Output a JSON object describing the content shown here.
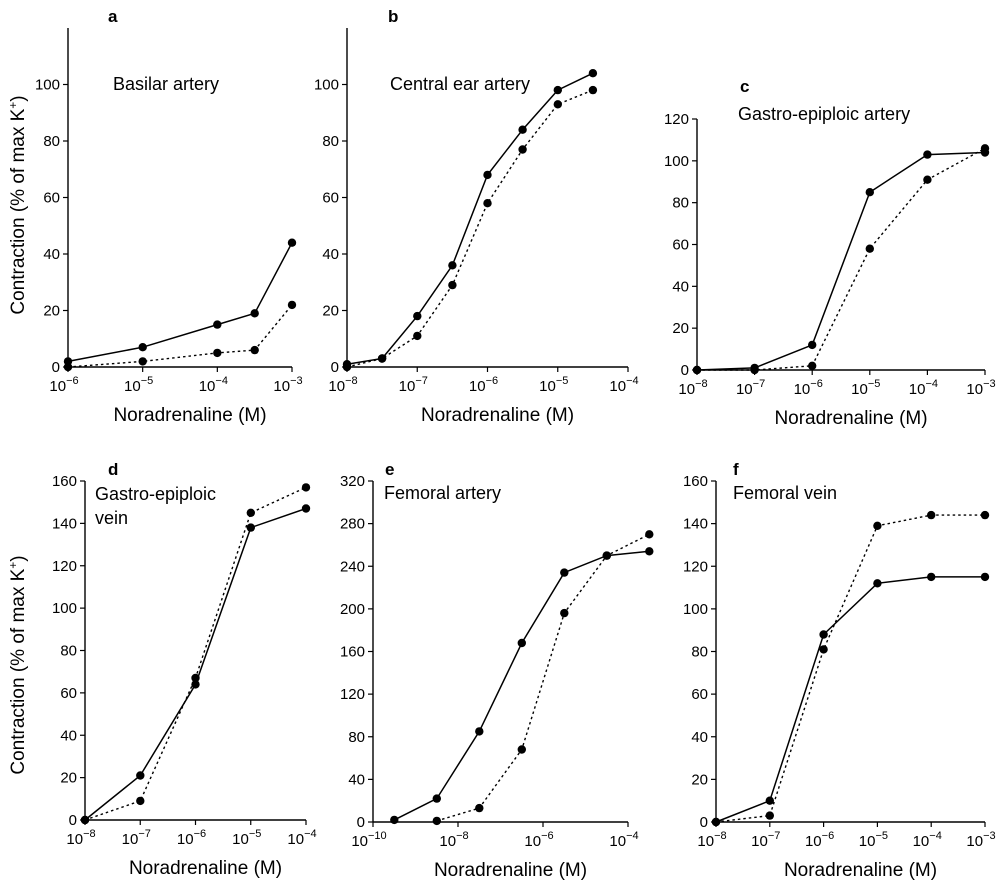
{
  "figure": {
    "ylabel": "Contraction (% of max K",
    "ylabel_sup": "+",
    "ylabel_end": ")",
    "xlabel": "Noradrenaline (M)"
  },
  "chart_data": [
    {
      "type": "line",
      "panel": "a",
      "title": "Basilar artery",
      "xscale": "log",
      "xlim": [
        -6,
        -3
      ],
      "xticks": [
        -6,
        -5,
        -4,
        -3
      ],
      "ylim": [
        0,
        120
      ],
      "yticks": [
        0,
        20,
        40,
        60,
        80,
        100
      ],
      "series": [
        {
          "style": "solid",
          "x": [
            -6,
            -5,
            -4,
            -3.5,
            -3
          ],
          "y": [
            2,
            7,
            15,
            19,
            44
          ]
        },
        {
          "style": "dotted",
          "x": [
            -6,
            -5,
            -4,
            -3.5,
            -3
          ],
          "y": [
            0,
            2,
            5,
            6,
            22
          ]
        }
      ]
    },
    {
      "type": "line",
      "panel": "b",
      "title": "Central ear artery",
      "xscale": "log",
      "xlim": [
        -8,
        -4
      ],
      "xticks": [
        -8,
        -7,
        -6,
        -5,
        -4
      ],
      "ylim": [
        0,
        120
      ],
      "yticks": [
        0,
        20,
        40,
        60,
        80,
        100
      ],
      "series": [
        {
          "style": "solid",
          "x": [
            -8,
            -7.5,
            -7,
            -6.5,
            -6,
            -5.5,
            -5,
            -4.5
          ],
          "y": [
            1,
            3,
            18,
            36,
            68,
            84,
            98,
            104
          ]
        },
        {
          "style": "dotted",
          "x": [
            -8,
            -7.5,
            -7,
            -6.5,
            -6,
            -5.5,
            -5,
            -4.5
          ],
          "y": [
            0,
            3,
            11,
            29,
            58,
            77,
            93,
            98
          ]
        }
      ]
    },
    {
      "type": "line",
      "panel": "c",
      "title": "Gastro-epiploic artery",
      "xscale": "log",
      "xlim": [
        -8,
        -3
      ],
      "xticks": [
        -8,
        -7,
        -6,
        -5,
        -4,
        -3
      ],
      "ylim": [
        0,
        120
      ],
      "yticks": [
        0,
        20,
        40,
        60,
        80,
        100,
        120
      ],
      "series": [
        {
          "style": "solid",
          "x": [
            -8,
            -7,
            -6,
            -5,
            -4,
            -3
          ],
          "y": [
            0,
            1,
            12,
            85,
            103,
            104
          ]
        },
        {
          "style": "dotted",
          "x": [
            -8,
            -7,
            -6,
            -5,
            -4,
            -3
          ],
          "y": [
            0,
            0,
            2,
            58,
            91,
            106
          ]
        }
      ]
    },
    {
      "type": "line",
      "panel": "d",
      "title": "Gastro-epiploic",
      "title2": "vein",
      "xscale": "log",
      "xlim": [
        -8,
        -4
      ],
      "xticks": [
        -8,
        -7,
        -6,
        -5,
        -4
      ],
      "ylim": [
        0,
        160
      ],
      "yticks": [
        0,
        20,
        40,
        60,
        80,
        100,
        120,
        140,
        160
      ],
      "series": [
        {
          "style": "solid",
          "x": [
            -8,
            -7,
            -6,
            -5,
            -4
          ],
          "y": [
            0,
            21,
            64,
            138,
            147
          ]
        },
        {
          "style": "dotted",
          "x": [
            -8,
            -7,
            -6,
            -5,
            -4
          ],
          "y": [
            0,
            9,
            67,
            145,
            157
          ]
        }
      ]
    },
    {
      "type": "line",
      "panel": "e",
      "title": "Femoral artery",
      "xscale": "log",
      "xlim": [
        -10,
        -4
      ],
      "xticks": [
        -10,
        -8,
        -6,
        -4
      ],
      "xtick_labels_max": -6,
      "ylim": [
        0,
        320
      ],
      "yticks": [
        0,
        40,
        80,
        120,
        160,
        200,
        240,
        280,
        320
      ],
      "series": [
        {
          "style": "solid",
          "x": [
            -9.5,
            -8.5,
            -7.5,
            -6.5,
            -5.5,
            -4.5,
            -3.5
          ],
          "y": [
            2,
            22,
            85,
            168,
            234,
            250,
            254
          ]
        },
        {
          "style": "dotted",
          "x": [
            -8.5,
            -7.5,
            -6.5,
            -5.5,
            -4.5,
            -3.5
          ],
          "y": [
            1,
            13,
            68,
            196,
            250,
            270
          ]
        }
      ]
    },
    {
      "type": "line",
      "panel": "f",
      "title": "Femoral vein",
      "xscale": "log",
      "xlim": [
        -8,
        -3
      ],
      "xticks": [
        -8,
        -7,
        -6,
        -5,
        -4,
        -3
      ],
      "ylim": [
        0,
        160
      ],
      "yticks": [
        0,
        20,
        40,
        60,
        80,
        100,
        120,
        140,
        160
      ],
      "series": [
        {
          "style": "solid",
          "x": [
            -8,
            -7,
            -6,
            -5,
            -4,
            -3
          ],
          "y": [
            0,
            10,
            88,
            112,
            115,
            115
          ]
        },
        {
          "style": "dotted",
          "x": [
            -8,
            -7,
            -6,
            -5,
            -4,
            -3
          ],
          "y": [
            0,
            3,
            81,
            139,
            144,
            144
          ]
        }
      ]
    }
  ]
}
